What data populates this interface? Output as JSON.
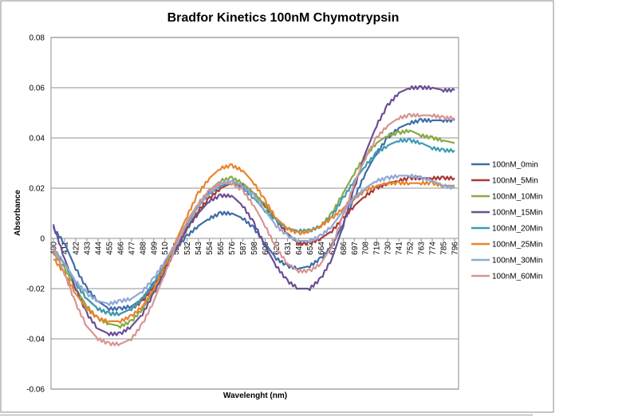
{
  "chart_data": {
    "type": "line",
    "title": "Bradfor Kinetics 100nM Chymotrypsin",
    "xlabel": "Wavelenght (nm)",
    "ylabel": "Absorbance",
    "ylim": [
      -0.06,
      0.08
    ],
    "yticks": [
      "0.08",
      "0.06",
      "0.04",
      "0.02",
      "0",
      "-0.02",
      "-0.04",
      "-0.06"
    ],
    "ytick_values": [
      0.08,
      0.06,
      0.04,
      0.02,
      0,
      -0.02,
      -0.04,
      -0.06
    ],
    "grid": "horizontal",
    "legend": "right",
    "x": [
      400,
      411,
      422,
      433,
      444,
      455,
      466,
      477,
      488,
      499,
      510,
      521,
      532,
      543,
      554,
      565,
      576,
      587,
      598,
      609,
      620,
      631,
      642,
      653,
      664,
      675,
      686,
      697,
      708,
      719,
      730,
      741,
      752,
      763,
      774,
      785,
      796
    ],
    "xticks": [
      "400",
      "411",
      "422",
      "433",
      "444",
      "455",
      "466",
      "477",
      "488",
      "499",
      "510",
      "521",
      "532",
      "543",
      "554",
      "565",
      "576",
      "587",
      "598",
      "609",
      "620",
      "631",
      "642",
      "653",
      "664",
      "675",
      "686",
      "697",
      "708",
      "719",
      "730",
      "741",
      "752",
      "763",
      "774",
      "785",
      "796"
    ],
    "series": [
      {
        "name": "100nM_0min",
        "color": "#3D6DA8",
        "values": [
          0.004,
          -0.002,
          -0.012,
          -0.02,
          -0.025,
          -0.028,
          -0.028,
          -0.027,
          -0.024,
          -0.018,
          -0.011,
          -0.004,
          0.001,
          0.005,
          0.008,
          0.01,
          0.01,
          0.008,
          0.004,
          -0.002,
          -0.008,
          -0.011,
          -0.012,
          -0.011,
          -0.008,
          -0.003,
          0.006,
          0.016,
          0.026,
          0.034,
          0.04,
          0.044,
          0.046,
          0.047,
          0.047,
          0.047,
          0.047
        ]
      },
      {
        "name": "100nM_5Min",
        "color": "#A83A38",
        "values": [
          -0.005,
          -0.01,
          -0.018,
          -0.024,
          -0.028,
          -0.03,
          -0.03,
          -0.028,
          -0.025,
          -0.019,
          -0.012,
          -0.004,
          0.004,
          0.011,
          0.016,
          0.02,
          0.022,
          0.021,
          0.018,
          0.013,
          0.007,
          0.002,
          -0.002,
          -0.002,
          0.0,
          0.003,
          0.008,
          0.013,
          0.017,
          0.02,
          0.022,
          0.023,
          0.024,
          0.024,
          0.024,
          0.024,
          0.024
        ]
      },
      {
        "name": "100nM_10Min",
        "color": "#88A945",
        "values": [
          -0.006,
          -0.012,
          -0.02,
          -0.027,
          -0.032,
          -0.034,
          -0.035,
          -0.033,
          -0.028,
          -0.021,
          -0.013,
          -0.004,
          0.005,
          0.013,
          0.019,
          0.023,
          0.024,
          0.022,
          0.018,
          0.013,
          0.008,
          0.004,
          0.002,
          0.003,
          0.005,
          0.01,
          0.018,
          0.026,
          0.033,
          0.038,
          0.041,
          0.042,
          0.043,
          0.041,
          0.04,
          0.039,
          0.038
        ]
      },
      {
        "name": "100nM_15Min",
        "color": "#6B4E94",
        "values": [
          0.005,
          -0.008,
          -0.02,
          -0.03,
          -0.036,
          -0.038,
          -0.038,
          -0.035,
          -0.03,
          -0.022,
          -0.013,
          -0.004,
          0.004,
          0.01,
          0.015,
          0.017,
          0.017,
          0.013,
          0.006,
          -0.003,
          -0.011,
          -0.017,
          -0.02,
          -0.02,
          -0.016,
          -0.008,
          0.005,
          0.02,
          0.034,
          0.045,
          0.053,
          0.058,
          0.06,
          0.06,
          0.06,
          0.059,
          0.059
        ]
      },
      {
        "name": "100nM_20Min",
        "color": "#3C9CB4",
        "values": [
          -0.004,
          -0.01,
          -0.018,
          -0.024,
          -0.028,
          -0.03,
          -0.03,
          -0.028,
          -0.024,
          -0.018,
          -0.01,
          -0.002,
          0.006,
          0.013,
          0.018,
          0.021,
          0.022,
          0.02,
          0.016,
          0.011,
          0.007,
          0.004,
          0.003,
          0.003,
          0.005,
          0.009,
          0.016,
          0.023,
          0.029,
          0.034,
          0.037,
          0.039,
          0.039,
          0.038,
          0.036,
          0.035,
          0.035
        ]
      },
      {
        "name": "100nM_25Min",
        "color": "#E8842C",
        "values": [
          -0.008,
          -0.014,
          -0.022,
          -0.028,
          -0.032,
          -0.033,
          -0.033,
          -0.031,
          -0.027,
          -0.02,
          -0.011,
          -0.001,
          0.009,
          0.018,
          0.024,
          0.028,
          0.029,
          0.027,
          0.022,
          0.015,
          0.008,
          0.004,
          0.002,
          0.003,
          0.005,
          0.008,
          0.012,
          0.016,
          0.019,
          0.021,
          0.022,
          0.022,
          0.022,
          0.022,
          0.022,
          0.021,
          0.021
        ]
      },
      {
        "name": "100nM_30Min",
        "color": "#8FA8D6",
        "values": [
          -0.004,
          -0.01,
          -0.017,
          -0.022,
          -0.025,
          -0.026,
          -0.025,
          -0.024,
          -0.021,
          -0.016,
          -0.009,
          -0.002,
          0.006,
          0.013,
          0.018,
          0.022,
          0.023,
          0.021,
          0.017,
          0.011,
          0.005,
          0.001,
          -0.001,
          -0.001,
          0.001,
          0.005,
          0.011,
          0.016,
          0.02,
          0.023,
          0.024,
          0.025,
          0.025,
          0.024,
          0.023,
          0.021,
          0.02
        ]
      },
      {
        "name": "100nM_60Min",
        "color": "#D69593",
        "values": [
          -0.004,
          -0.014,
          -0.026,
          -0.035,
          -0.04,
          -0.042,
          -0.042,
          -0.04,
          -0.034,
          -0.025,
          -0.014,
          -0.003,
          0.007,
          0.014,
          0.019,
          0.022,
          0.022,
          0.019,
          0.013,
          0.005,
          -0.004,
          -0.01,
          -0.013,
          -0.013,
          -0.01,
          -0.003,
          0.009,
          0.022,
          0.032,
          0.04,
          0.045,
          0.048,
          0.049,
          0.049,
          0.049,
          0.048,
          0.048
        ]
      }
    ]
  }
}
